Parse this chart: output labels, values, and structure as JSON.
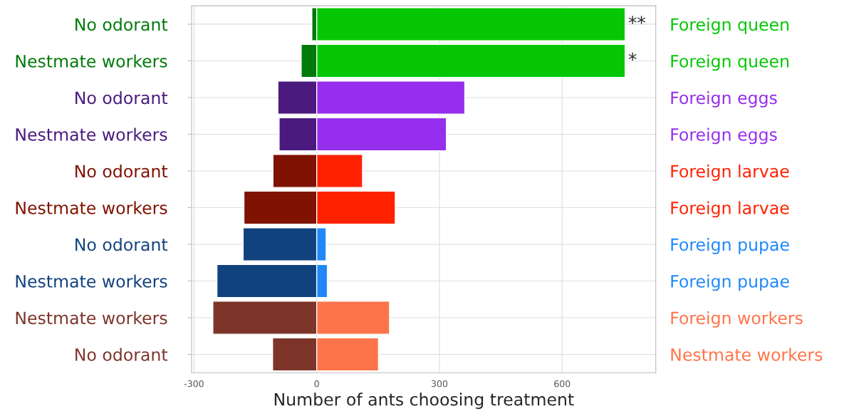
{
  "chart_data": {
    "type": "bar",
    "orientation": "horizontal",
    "stacked": true,
    "xlabel": "Number of ants choosing treatment",
    "categories": [
      "No odorant",
      "Nestmate workers",
      "No odorant",
      "Nestmate workers",
      "No odorant",
      "Nestmate workers",
      "No odorant",
      "Nestmate workers",
      "Nestmate workers",
      "No odorant"
    ],
    "y2_categories": [
      "Foreign queen",
      "Foreign queen",
      "Foreign eggs",
      "Foreign eggs",
      "Foreign larvae",
      "Foreign larvae",
      "Foreign pupae",
      "Foreign pupae",
      "Foreign workers",
      "Nestmate workers"
    ],
    "series": [
      {
        "colors": [
          "#007a0a",
          "#007a0a",
          "#4a1a7e",
          "#4a1a7e",
          "#7f1200",
          "#7f1200",
          "#12427e",
          "#12427e",
          "#7d352a",
          "#7d352a"
        ],
        "values": [
          -12,
          -38,
          -95,
          -92,
          -107,
          -178,
          -180,
          -244,
          -254,
          -108
        ]
      },
      {
        "colors": [
          "#05c705",
          "#05c705",
          "#962eed",
          "#962eed",
          "#ff2200",
          "#ff2200",
          "#1e88fc",
          "#1e88fc",
          "#fd744a",
          "#fd744a"
        ],
        "values": [
          754,
          754,
          362,
          317,
          112,
          192,
          23,
          26,
          178,
          151
        ]
      }
    ],
    "xlim": [
      -306,
      829
    ],
    "xticks": [
      {
        "value": -300,
        "label": "-300"
      },
      0,
      300,
      600
    ],
    "grid": true,
    "annotations": [
      {
        "text": "**",
        "x": 754,
        "y": "No odorant"
      },
      {
        "text": "*",
        "x": 754,
        "y": "Nestmate workers"
      }
    ]
  }
}
